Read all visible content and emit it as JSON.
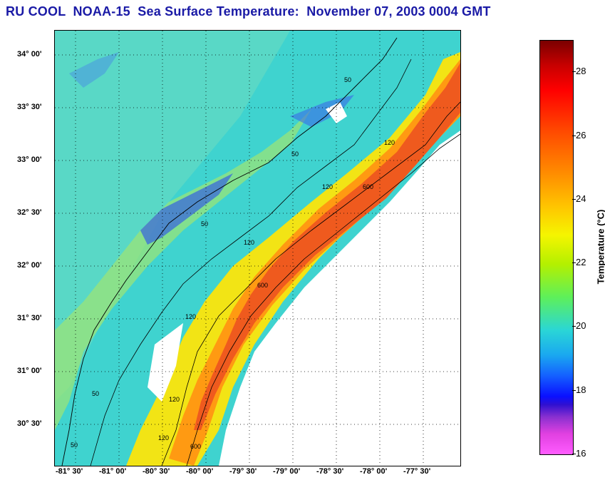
{
  "title": "RU COOL  NOAA-15  Sea Surface Temperature:  November 07, 2003 0004 GMT",
  "lat_labels": [
    "34° 00'",
    "33° 30'",
    "33° 00'",
    "32° 30'",
    "32° 00'",
    "31° 30'",
    "31° 00'",
    "30° 30'"
  ],
  "lon_labels": [
    "-81° 30'",
    "-81° 00'",
    "-80° 30'",
    "-80° 00'",
    "-79° 30'",
    "-79° 00'",
    "-78° 30'",
    "-78° 00'",
    "-77° 30'"
  ],
  "contour_labels": [
    "50",
    "50",
    "50",
    "50",
    "50",
    "120",
    "120",
    "120",
    "120",
    "120",
    "120",
    "600",
    "600",
    "600"
  ],
  "colorbar": {
    "label": "Temperature (°C)",
    "ticks": [
      "28",
      "26",
      "24",
      "22",
      "20",
      "18",
      "16"
    ],
    "min": 16,
    "max": 29
  },
  "colors": {
    "title": "#1a1aa6",
    "land": "#ffffff"
  }
}
